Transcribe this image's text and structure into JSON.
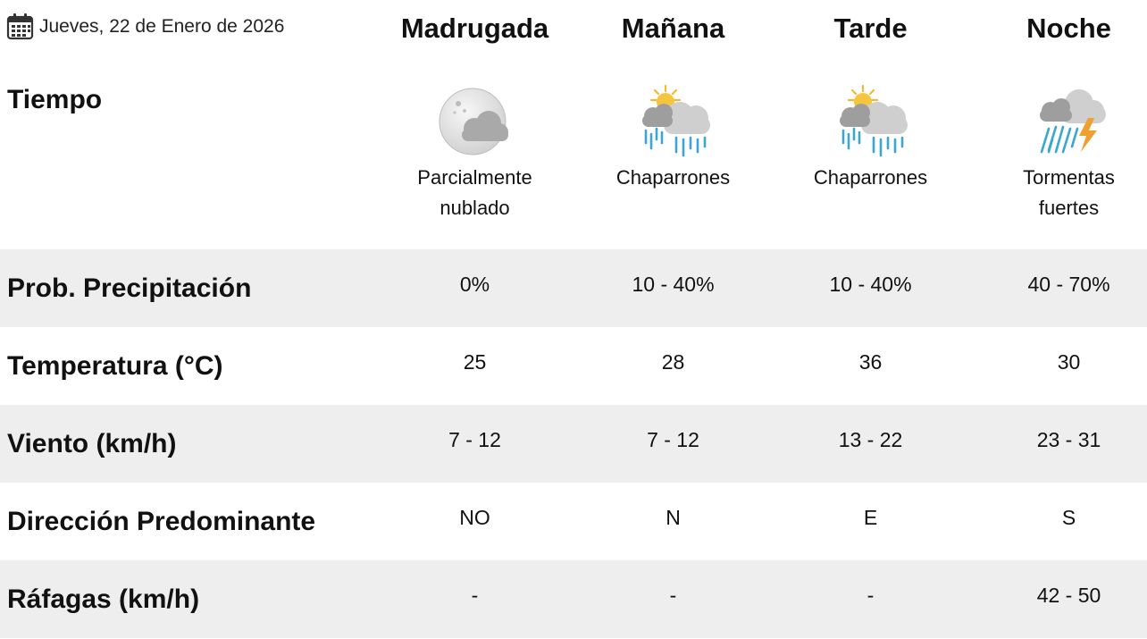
{
  "header": {
    "date": "Jueves, 22 de Enero de 2026",
    "periods": [
      "Madrugada",
      "Mañana",
      "Tarde",
      "Noche"
    ]
  },
  "weather": {
    "label": "Tiempo",
    "conditions": [
      {
        "icon": "partly-cloudy-night-icon",
        "line1": "Parcialmente",
        "line2": "nublado"
      },
      {
        "icon": "showers-icon",
        "line1": "Chaparrones",
        "line2": ""
      },
      {
        "icon": "showers-icon",
        "line1": "Chaparrones",
        "line2": ""
      },
      {
        "icon": "severe-thunderstorm-icon",
        "line1": "Tormentas",
        "line2": "fuertes"
      }
    ]
  },
  "rows": [
    {
      "label": "Prob. Precipitación",
      "values": [
        "0%",
        "10 - 40%",
        "10 - 40%",
        "40 - 70%"
      ]
    },
    {
      "label": "Temperatura (°C)",
      "values": [
        "25",
        "28",
        "36",
        "30"
      ]
    },
    {
      "label": "Viento (km/h)",
      "values": [
        "7 - 12",
        "7 - 12",
        "13 - 22",
        "23 - 31"
      ]
    },
    {
      "label": "Dirección Predominante",
      "values": [
        "NO",
        "N",
        "E",
        "S"
      ]
    },
    {
      "label": "Ráfagas (km/h)",
      "values": [
        "-",
        "-",
        "-",
        "42 - 50"
      ]
    }
  ],
  "colors": {
    "row_shade": "#eeeeee",
    "rain": "#3aa6d6",
    "sun": "#f2b830",
    "lightning": "#f0a030",
    "cloud": "#c9c9c9"
  }
}
